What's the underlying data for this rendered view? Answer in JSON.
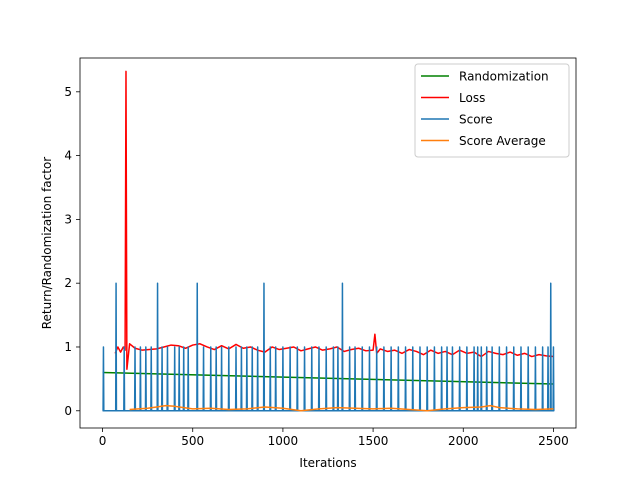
{
  "chart_data": {
    "type": "line",
    "title": "",
    "xlabel": "Iterations",
    "ylabel": "Return/Randomization factor",
    "xlim": [
      -125,
      2625
    ],
    "ylim": [
      -0.27,
      5.53
    ],
    "xticks": [
      0,
      500,
      1000,
      1500,
      2000,
      2500
    ],
    "xtick_labels": [
      "0",
      "500",
      "1000",
      "1500",
      "2000",
      "2500"
    ],
    "yticks": [
      0,
      1,
      2,
      3,
      4,
      5
    ],
    "ytick_labels": [
      "0",
      "1",
      "2",
      "3",
      "4",
      "5"
    ],
    "grid": false,
    "legend_position": "top-right",
    "series": [
      {
        "name": "Randomization",
        "color": "#008000",
        "x": [
          0,
          2500
        ],
        "y": [
          0.6,
          0.42
        ]
      },
      {
        "name": "Loss",
        "color": "#ff0000",
        "x": [
          70,
          85,
          100,
          115,
          125,
          130,
          135,
          150,
          180,
          220,
          260,
          300,
          340,
          380,
          420,
          460,
          500,
          540,
          580,
          620,
          660,
          700,
          740,
          780,
          820,
          860,
          900,
          940,
          980,
          1020,
          1060,
          1100,
          1140,
          1180,
          1220,
          1260,
          1300,
          1340,
          1380,
          1420,
          1460,
          1500,
          1510,
          1520,
          1540,
          1580,
          1620,
          1660,
          1700,
          1740,
          1780,
          1820,
          1860,
          1900,
          1940,
          1980,
          2020,
          2060,
          2100,
          2140,
          2180,
          2220,
          2260,
          2300,
          2340,
          2380,
          2420,
          2460,
          2500
        ],
        "y": [
          0.9,
          1.0,
          0.92,
          1.0,
          0.95,
          5.32,
          0.65,
          1.05,
          0.98,
          0.95,
          0.96,
          0.97,
          1.0,
          1.03,
          1.02,
          0.98,
          1.03,
          1.05,
          1.0,
          0.96,
          1.02,
          0.97,
          1.04,
          0.98,
          1.0,
          0.95,
          0.92,
          1.0,
          0.96,
          0.98,
          1.0,
          0.94,
          0.97,
          1.0,
          0.95,
          0.97,
          1.0,
          0.93,
          0.96,
          0.98,
          0.94,
          0.95,
          1.2,
          0.9,
          0.97,
          0.93,
          0.95,
          0.9,
          0.96,
          0.93,
          0.88,
          0.95,
          0.9,
          0.93,
          0.88,
          0.95,
          0.9,
          0.92,
          0.85,
          0.93,
          0.9,
          0.88,
          0.92,
          0.87,
          0.9,
          0.85,
          0.88,
          0.86,
          0.85
        ]
      },
      {
        "name": "Score",
        "color": "#1f77b4",
        "baseline": 0,
        "spikes": [
          [
            5,
            1
          ],
          [
            75,
            2
          ],
          [
            120,
            1
          ],
          [
            180,
            1
          ],
          [
            210,
            1
          ],
          [
            240,
            1
          ],
          [
            270,
            1
          ],
          [
            305,
            2
          ],
          [
            330,
            1
          ],
          [
            360,
            1
          ],
          [
            400,
            1
          ],
          [
            425,
            1
          ],
          [
            450,
            1
          ],
          [
            475,
            1
          ],
          [
            525,
            2
          ],
          [
            560,
            1
          ],
          [
            600,
            1
          ],
          [
            630,
            1
          ],
          [
            660,
            1
          ],
          [
            700,
            1
          ],
          [
            740,
            1
          ],
          [
            770,
            1
          ],
          [
            800,
            1
          ],
          [
            830,
            1
          ],
          [
            860,
            1
          ],
          [
            895,
            2
          ],
          [
            930,
            1
          ],
          [
            960,
            1
          ],
          [
            1000,
            1
          ],
          [
            1040,
            1
          ],
          [
            1080,
            1
          ],
          [
            1120,
            1
          ],
          [
            1160,
            1
          ],
          [
            1200,
            1
          ],
          [
            1240,
            1
          ],
          [
            1280,
            1
          ],
          [
            1305,
            1
          ],
          [
            1330,
            2
          ],
          [
            1370,
            1
          ],
          [
            1400,
            1
          ],
          [
            1440,
            1
          ],
          [
            1480,
            1
          ],
          [
            1520,
            1
          ],
          [
            1560,
            1
          ],
          [
            1600,
            1
          ],
          [
            1640,
            1
          ],
          [
            1680,
            1
          ],
          [
            1720,
            1
          ],
          [
            1760,
            1
          ],
          [
            1800,
            1
          ],
          [
            1840,
            1
          ],
          [
            1880,
            1
          ],
          [
            1910,
            1
          ],
          [
            1940,
            1
          ],
          [
            1980,
            1
          ],
          [
            2020,
            1
          ],
          [
            2060,
            1
          ],
          [
            2080,
            1
          ],
          [
            2100,
            1
          ],
          [
            2130,
            1
          ],
          [
            2160,
            1
          ],
          [
            2200,
            1
          ],
          [
            2240,
            1
          ],
          [
            2280,
            1
          ],
          [
            2320,
            1
          ],
          [
            2360,
            1
          ],
          [
            2400,
            1
          ],
          [
            2440,
            1
          ],
          [
            2470,
            1
          ],
          [
            2485,
            2
          ],
          [
            2500,
            1
          ]
        ]
      },
      {
        "name": "Score Average",
        "color": "#ff7f0e",
        "x": [
          150,
          250,
          300,
          350,
          400,
          450,
          500,
          600,
          700,
          800,
          900,
          1000,
          1100,
          1200,
          1300,
          1400,
          1500,
          1600,
          1700,
          1800,
          1900,
          2000,
          2100,
          2150,
          2200,
          2300,
          2400,
          2500
        ],
        "y": [
          0.02,
          0.04,
          0.06,
          0.08,
          0.07,
          0.05,
          0.03,
          0.04,
          0.02,
          0.03,
          0.06,
          0.04,
          0.0,
          0.03,
          0.05,
          0.04,
          0.03,
          0.04,
          0.02,
          0.0,
          0.03,
          0.05,
          0.06,
          0.08,
          0.05,
          0.03,
          0.02,
          0.03
        ]
      }
    ]
  }
}
